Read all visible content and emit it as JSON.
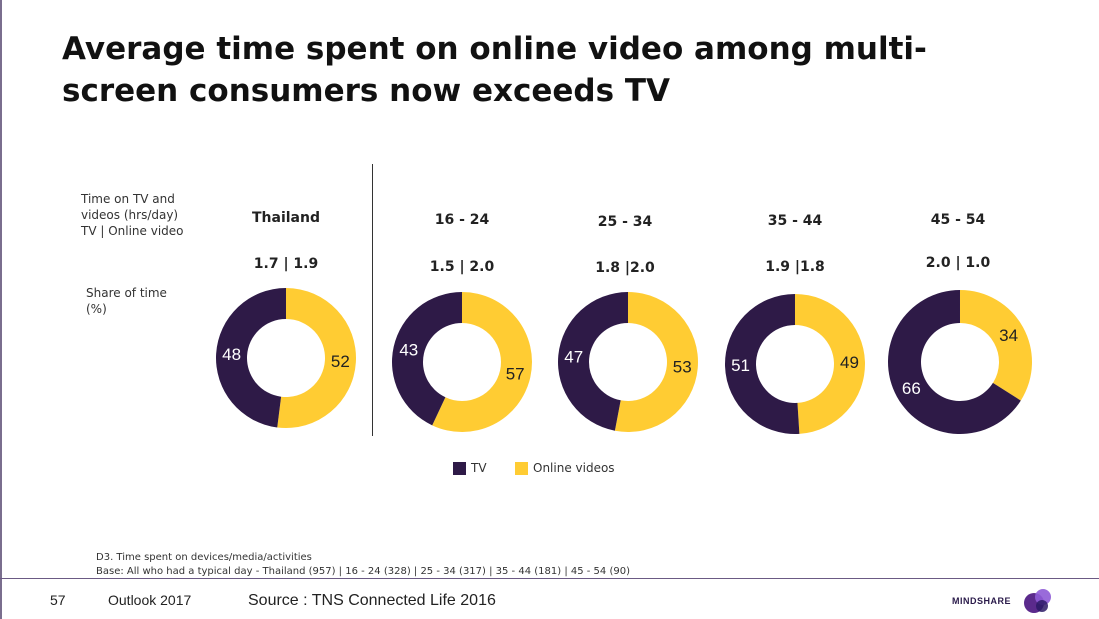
{
  "title": "Average time spent on online video among multi-screen consumers now exceeds TV",
  "title_lines": [
    "Average time spent on online video among multi-",
    "screen consumers now exceeds TV"
  ],
  "side_labels": {
    "time_lines": [
      "Time on TV and",
      "videos (hrs/day)",
      "TV  |  Online video"
    ],
    "share_lines": [
      "Share of time",
      "(%)"
    ]
  },
  "colors": {
    "tv": "#2e1a47",
    "online": "#ffcc33",
    "divider": "#333333",
    "footer_rule": "#6b5a84"
  },
  "chart_data": {
    "type": "pie",
    "variant": "donut",
    "series_names": [
      "TV",
      "Online videos"
    ],
    "groups": [
      {
        "label": "Thailand",
        "hours": "1.7  |  1.9",
        "tv_share": 48,
        "online_share": 52
      },
      {
        "label": "16 - 24",
        "hours": "1.5  |  2.0",
        "tv_share": 43,
        "online_share": 57
      },
      {
        "label": "25 - 34",
        "hours": "1.8  |2.0",
        "tv_share": 47,
        "online_share": 53
      },
      {
        "label": "35 - 44",
        "hours": "1.9  |1.8",
        "tv_share": 51,
        "online_share": 49
      },
      {
        "label": "45 - 54",
        "hours": "2.0  |  1.0",
        "tv_share": 66,
        "online_share": 34
      }
    ],
    "legend": [
      {
        "label": "TV",
        "color": "#2e1a47"
      },
      {
        "label": "Online videos",
        "color": "#ffcc33"
      }
    ],
    "legend_position": "bottom-center"
  },
  "notes": [
    "D3. Time spent on devices/media/activities",
    "Base: All who had a typical day - Thailand (957)  |  16 - 24 (328)  |  25 - 34 (317)  |  35 - 44 (181)  |  45 - 54 (90)"
  ],
  "footer": {
    "page_number": "57",
    "report": "Outlook 2017",
    "source": "Source : TNS Connected Life 2016",
    "logo_text": "MINDSHARE"
  }
}
